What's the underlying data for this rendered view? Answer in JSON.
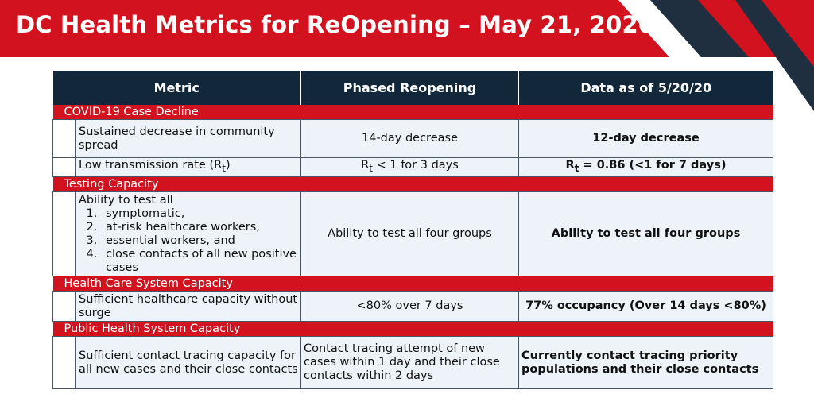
{
  "banner": {
    "title": "DC Health Metrics for ReOpening – May 21, 2020",
    "color": "#d3121f"
  },
  "table": {
    "headers": {
      "metric": "Metric",
      "phased": "Phased Reopening",
      "data": "Data as of 5/20/20"
    },
    "categories": {
      "case_decline": "COVID-19 Case Decline",
      "testing": "Testing Capacity",
      "health_care": "Health Care System Capacity",
      "public_health": "Public Health System Capacity"
    },
    "rows": {
      "sustained": {
        "metric": "Sustained decrease in community spread",
        "phased": "14-day decrease",
        "data": "12-day decrease"
      },
      "transmission": {
        "metric": "Low transmission rate (R",
        "metric_sub": "t",
        "metric_end": ")",
        "phased": "R",
        "phased_sub": "t",
        "phased_end": " < 1 for 3 days",
        "data": "R",
        "data_sub": "t",
        "data_end": " = 0.86 (<1 for 7 days)"
      },
      "testing": {
        "metric_intro": "Ability to test all",
        "groups": [
          "symptomatic,",
          "at-risk healthcare workers,",
          "essential workers, and",
          "close contacts of all new positive cases"
        ],
        "phased": "Ability to test all four groups",
        "data": "Ability to test all four groups"
      },
      "healthcare": {
        "metric": "Sufficient healthcare capacity without surge",
        "phased": "<80% over 7 days",
        "data": "77% occupancy (Over 14 days <80%)"
      },
      "tracing": {
        "metric": "Sufficient contact tracing capacity for all new cases and their close contacts",
        "phased": "Contact tracing attempt of new cases within 1 day and their close contacts within 2 days",
        "data": "Currently contact tracing priority populations and their close contacts"
      }
    }
  }
}
